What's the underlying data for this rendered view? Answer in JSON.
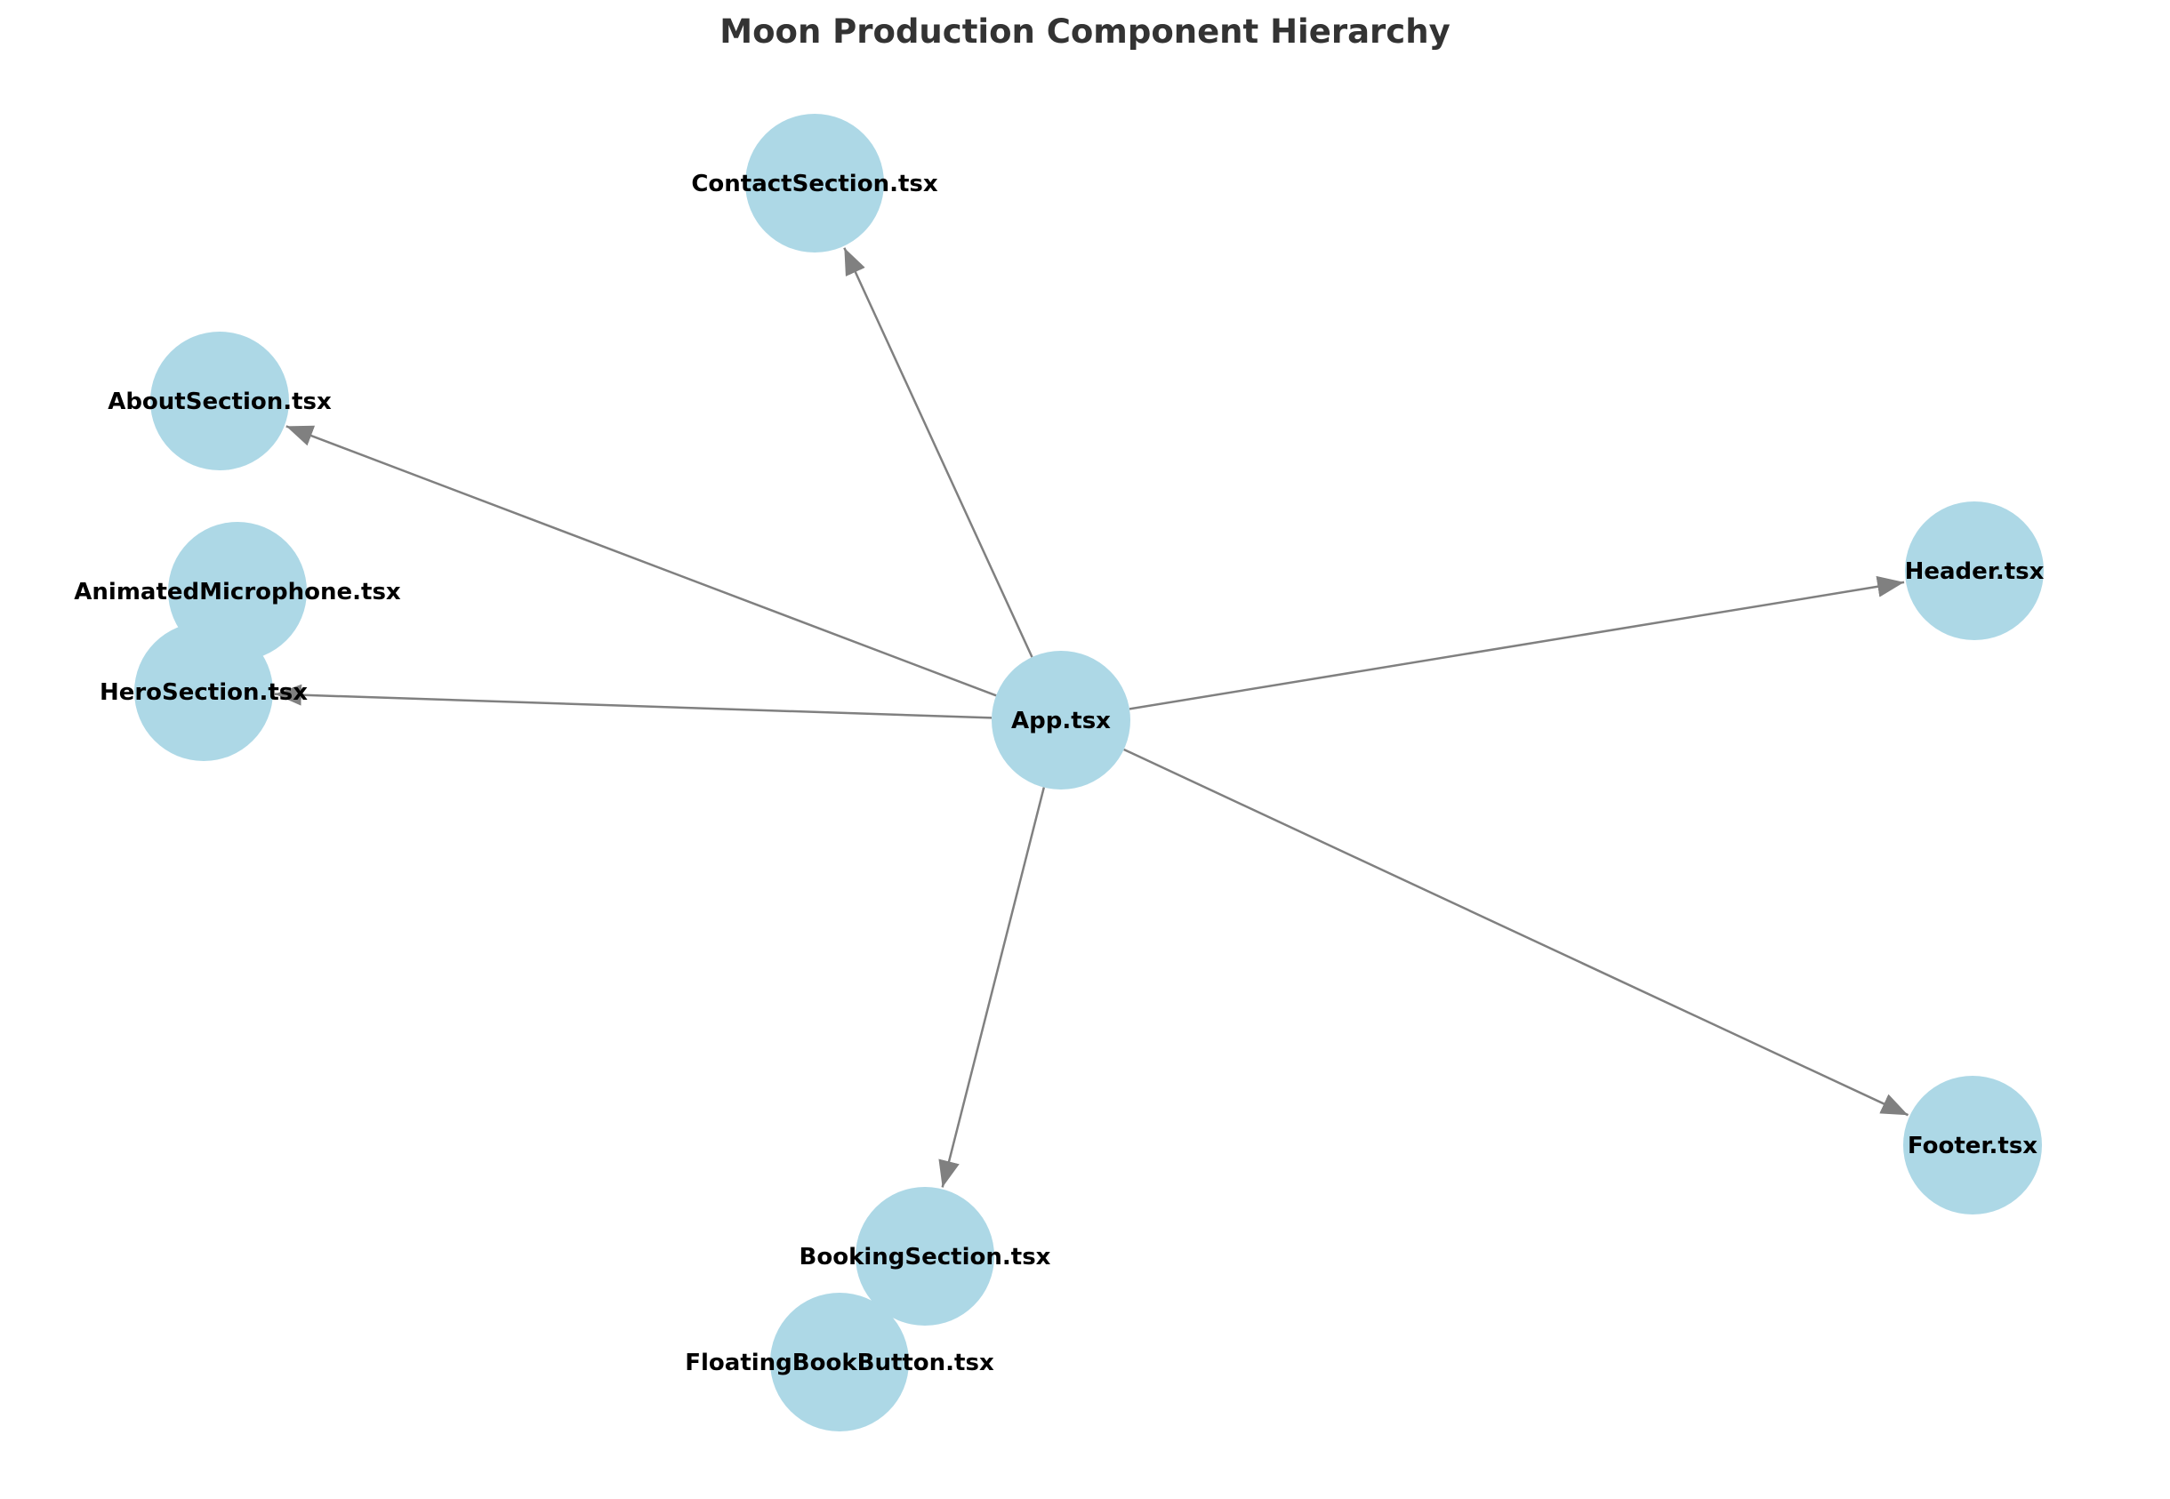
{
  "title": "Moon Production Component Hierarchy",
  "colors": {
    "node_fill": "#add8e6",
    "edge": "#808080",
    "label": "#000000",
    "title": "#333333"
  },
  "nodes": [
    {
      "id": "app",
      "label": "App.tsx"
    },
    {
      "id": "contact",
      "label": "ContactSection.tsx"
    },
    {
      "id": "about",
      "label": "AboutSection.tsx"
    },
    {
      "id": "mic",
      "label": "AnimatedMicrophone.tsx"
    },
    {
      "id": "hero",
      "label": "HeroSection.tsx"
    },
    {
      "id": "header",
      "label": "Header.tsx"
    },
    {
      "id": "footer",
      "label": "Footer.tsx"
    },
    {
      "id": "booking",
      "label": "BookingSection.tsx"
    },
    {
      "id": "floating",
      "label": "FloatingBookButton.tsx"
    }
  ],
  "edges": [
    {
      "from": "app",
      "to": "contact"
    },
    {
      "from": "app",
      "to": "about"
    },
    {
      "from": "app",
      "to": "hero"
    },
    {
      "from": "app",
      "to": "header"
    },
    {
      "from": "app",
      "to": "footer"
    },
    {
      "from": "app",
      "to": "booking"
    }
  ]
}
